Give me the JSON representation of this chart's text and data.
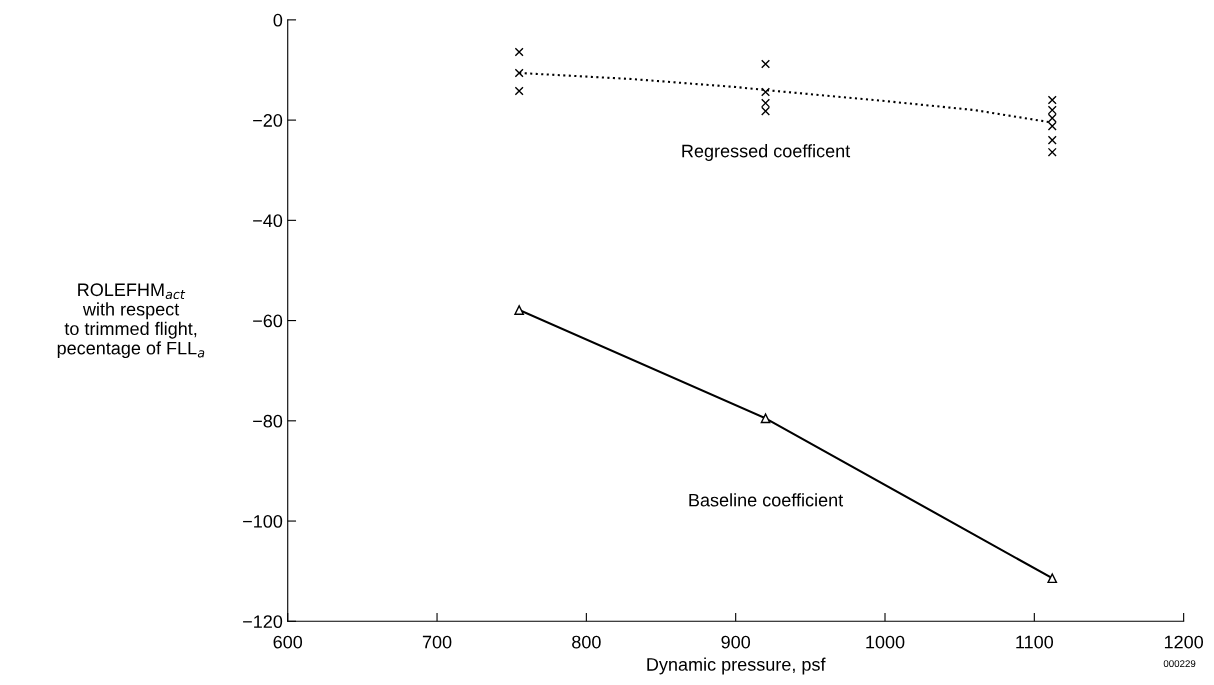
{
  "chart_data": {
    "type": "line",
    "xlabel": "Dynamic pressure, psf",
    "ylabel": "ROLEFHM$_{act}$\nwith respect\nto trimmed flight,\npecentage of FLL$_{a}$",
    "xlim": [
      600,
      1200
    ],
    "ylim": [
      -120,
      0
    ],
    "xticks": [
      600,
      700,
      800,
      900,
      1000,
      1100,
      1200
    ],
    "yticks": [
      0,
      -20,
      -40,
      -60,
      -80,
      -100,
      -120
    ],
    "grid": false,
    "legend": false,
    "series": [
      {
        "name": "Regressed coefficent",
        "color": "#000000",
        "line_style": "dotted",
        "marker": "none",
        "x": [
          755,
          830,
          900,
          920,
          1000,
          1060,
          1110
        ],
        "values": [
          -10.6,
          -11.8,
          -13.4,
          -14.0,
          -16.2,
          -18.0,
          -20.4
        ]
      },
      {
        "type": "scatter",
        "color": "#000000",
        "marker": "cross",
        "x": [
          755,
          755,
          755,
          920,
          920,
          920,
          920,
          1112,
          1112,
          1112,
          1112,
          1112,
          1112
        ],
        "values": [
          -6.4,
          -10.6,
          -14.2,
          -8.8,
          -14.4,
          -16.6,
          -18.2,
          -16,
          -18,
          -19.6,
          -21.2,
          -24,
          -26.4
        ]
      },
      {
        "name": "Baseline coefficient",
        "color": "#000000",
        "line_style": "solid",
        "marker": "triangle",
        "x": [
          755,
          920,
          1112
        ],
        "values": [
          -57.9,
          -79.5,
          -111.4
        ]
      }
    ],
    "annotations": [
      "000229"
    ]
  }
}
